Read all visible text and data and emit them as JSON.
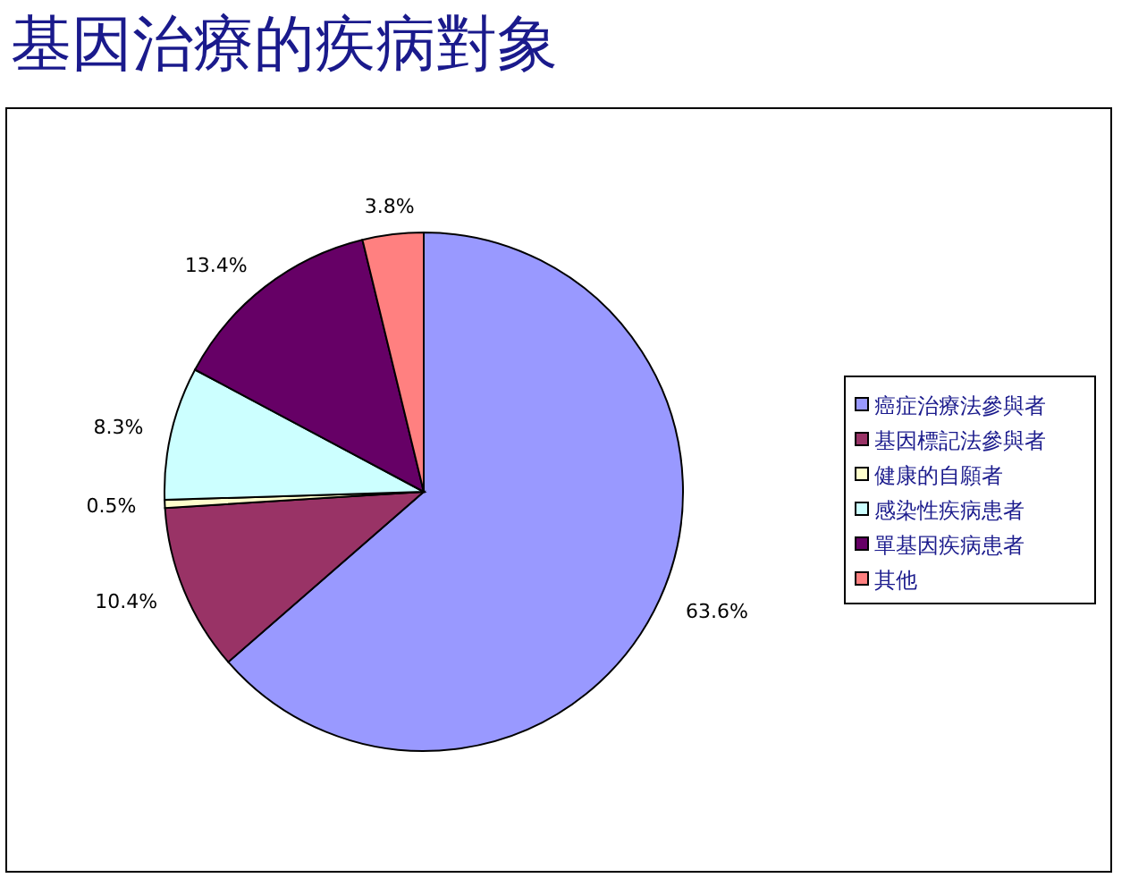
{
  "chart_data": {
    "type": "pie",
    "title": "基因治療的疾病對象",
    "categories": [
      "癌症治療法參與者",
      "基因標記法參與者",
      "健康的自願者",
      "感染性疾病患者",
      "單基因疾病患者",
      "其他"
    ],
    "values": [
      63.6,
      10.4,
      0.5,
      8.3,
      13.4,
      3.8
    ],
    "value_labels": [
      "63.6%",
      "10.4%",
      "0.5%",
      "8.3%",
      "13.4%",
      "3.8%"
    ],
    "colors": [
      "#9999ff",
      "#993366",
      "#ffffcc",
      "#ccffff",
      "#660066",
      "#ff8080"
    ],
    "legend": "right"
  }
}
